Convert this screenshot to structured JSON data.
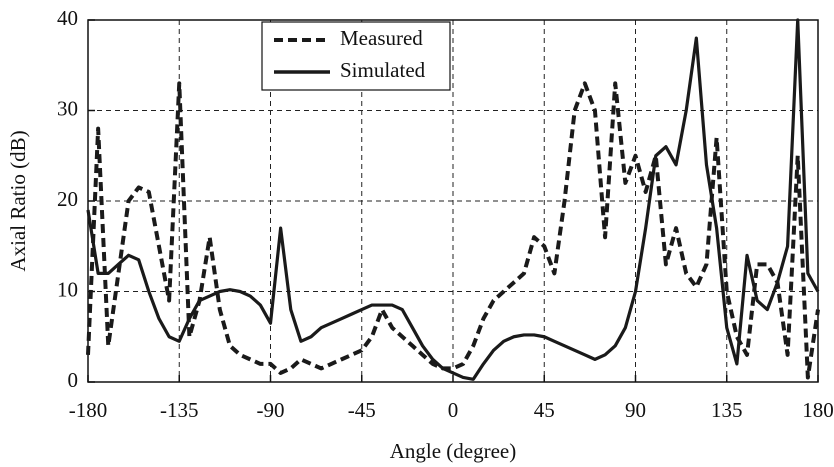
{
  "chart_data": {
    "type": "line",
    "x_label": "Angle (degree)",
    "y_label": "Axial Ratio (dB)",
    "x": [
      -180,
      -175,
      -170,
      -165,
      -160,
      -155,
      -150,
      -145,
      -140,
      -135,
      -130,
      -125,
      -120,
      -115,
      -110,
      -105,
      -100,
      -95,
      -90,
      -85,
      -80,
      -75,
      -70,
      -65,
      -60,
      -55,
      -50,
      -45,
      -40,
      -35,
      -30,
      -25,
      -20,
      -15,
      -10,
      -5,
      0,
      5,
      10,
      15,
      20,
      25,
      30,
      35,
      40,
      45,
      50,
      55,
      60,
      65,
      70,
      75,
      80,
      85,
      90,
      95,
      100,
      105,
      110,
      115,
      120,
      125,
      130,
      135,
      140,
      145,
      150,
      155,
      160,
      165,
      170,
      175,
      180
    ],
    "series": [
      {
        "name": "Measured",
        "color": "#1a1a1a",
        "line_style": "dashed",
        "values": [
          3,
          28,
          4,
          12,
          20,
          21.5,
          21,
          15,
          9,
          33,
          5,
          9,
          16,
          8,
          4,
          3,
          2.5,
          2,
          2,
          1,
          1.5,
          2.5,
          2,
          1.5,
          2,
          2.5,
          3,
          3.5,
          5,
          8,
          6,
          5,
          4,
          3,
          2,
          1.5,
          1.5,
          2,
          4,
          7,
          9,
          10,
          11,
          12,
          16,
          15,
          12,
          20,
          30,
          33,
          30,
          16,
          33,
          22,
          25,
          21,
          25,
          13,
          17,
          12,
          10.5,
          13,
          27,
          10,
          5,
          3,
          13,
          13,
          11,
          3,
          25,
          0.5,
          8
        ]
      },
      {
        "name": "Simulated",
        "color": "#1a1a1a",
        "line_style": "solid",
        "values": [
          19,
          12,
          12,
          13,
          14,
          13.5,
          10,
          7,
          5,
          4.5,
          7,
          9,
          9.5,
          10,
          10.2,
          10,
          9.5,
          8.5,
          6.5,
          17,
          8,
          4.5,
          5,
          6,
          6.5,
          7,
          7.5,
          8,
          8.5,
          8.5,
          8.5,
          8,
          6,
          4,
          2.5,
          1.5,
          1,
          0.5,
          0.3,
          2,
          3.5,
          4.5,
          5,
          5.2,
          5.2,
          5,
          4.5,
          4,
          3.5,
          3,
          2.5,
          3,
          4,
          6,
          10,
          17,
          25,
          26,
          24,
          30,
          38,
          24,
          17,
          6,
          2,
          14,
          9,
          8,
          11,
          15,
          40,
          12,
          10
        ]
      }
    ],
    "xlim": [
      -180,
      180
    ],
    "xticks": [
      -180,
      -135,
      -90,
      -45,
      0,
      45,
      90,
      135,
      180
    ],
    "ylim": [
      0,
      40
    ],
    "yticks": [
      0,
      10,
      20,
      30,
      40
    ],
    "grid": true,
    "legend": "top-center"
  }
}
